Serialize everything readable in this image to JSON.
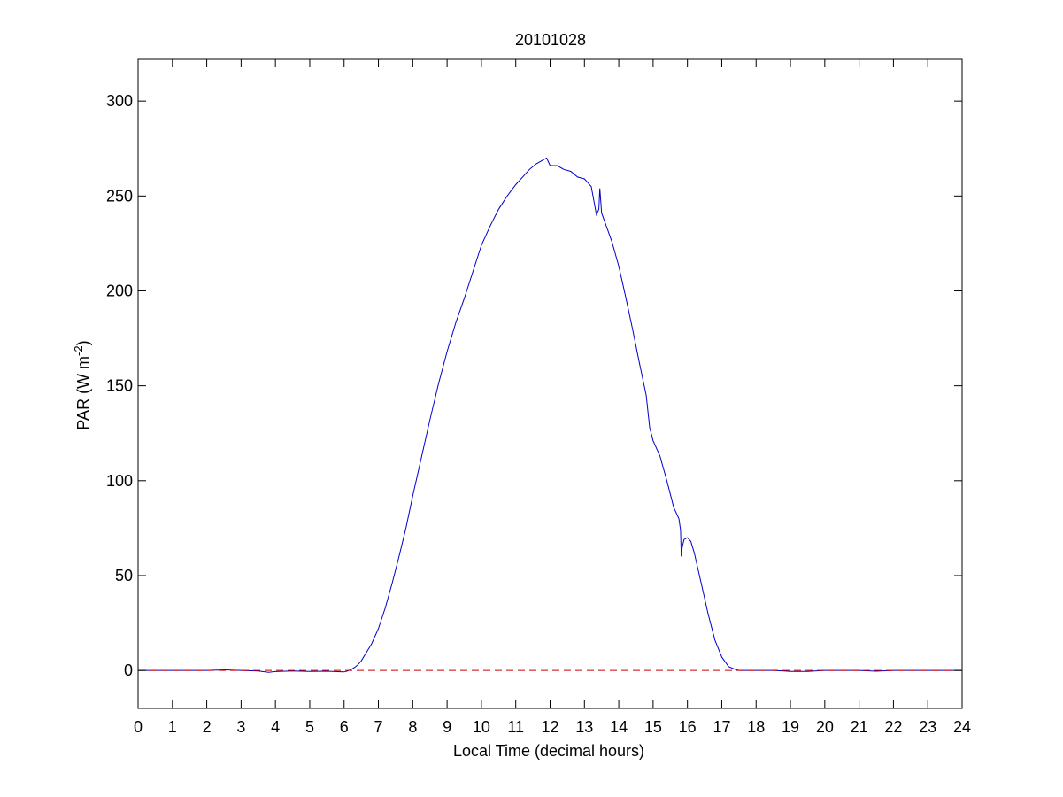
{
  "chart_data": {
    "type": "line",
    "title": "20101028",
    "xlabel": "Local Time (decimal hours)",
    "ylabel": "PAR (W m",
    "ylabel_sup": "-2",
    "ylabel_tail": ")",
    "xlim": [
      0,
      24
    ],
    "ylim": [
      -20,
      322
    ],
    "xticks": [
      0,
      1,
      2,
      3,
      4,
      5,
      6,
      7,
      8,
      9,
      10,
      11,
      12,
      13,
      14,
      15,
      16,
      17,
      18,
      19,
      20,
      21,
      22,
      23,
      24
    ],
    "yticks": [
      0,
      50,
      100,
      150,
      200,
      250,
      300
    ],
    "grid": false,
    "series": [
      {
        "color": "#0000cc",
        "style": "solid",
        "x": [
          0,
          1,
          2,
          2.5,
          3,
          3.5,
          3.8,
          4,
          4.5,
          5,
          5.5,
          6,
          6.1,
          6.2,
          6.3,
          6.4,
          6.5,
          6.6,
          6.8,
          7,
          7.2,
          7.4,
          7.6,
          7.8,
          8,
          8.25,
          8.5,
          8.75,
          9,
          9.25,
          9.5,
          9.75,
          10,
          10.25,
          10.5,
          10.75,
          11,
          11.2,
          11.4,
          11.6,
          11.8,
          11.9,
          12,
          12.2,
          12.4,
          12.6,
          12.8,
          13,
          13.2,
          13.35,
          13.42,
          13.45,
          13.5,
          13.6,
          13.8,
          14,
          14.2,
          14.4,
          14.6,
          14.8,
          14.9,
          15,
          15.2,
          15.4,
          15.6,
          15.75,
          15.8,
          15.82,
          15.85,
          15.9,
          16,
          16.1,
          16.2,
          16.4,
          16.6,
          16.8,
          17,
          17.2,
          17.4,
          17.5,
          18,
          18.5,
          19,
          19.5,
          20,
          20.5,
          21,
          21.5,
          22,
          23,
          24
        ],
        "y": [
          0,
          0,
          0,
          0.3,
          0,
          -0.3,
          -1,
          -0.6,
          -0.3,
          -0.5,
          -0.4,
          -0.8,
          -0.3,
          0.5,
          1.5,
          3,
          5,
          8,
          14,
          22,
          33,
          46,
          60,
          75,
          92,
          112,
          132,
          151,
          168,
          183,
          196,
          210,
          224,
          234,
          243,
          250,
          256,
          260,
          264,
          267,
          269,
          270,
          266,
          266,
          264,
          263,
          260,
          259,
          255,
          240,
          243,
          254,
          241,
          236,
          226,
          213,
          197,
          180,
          162,
          145,
          128,
          121,
          113,
          100,
          86,
          80,
          74,
          60,
          65,
          69,
          70,
          68,
          62,
          46,
          30,
          16,
          7,
          2,
          0.5,
          0,
          0,
          0,
          -0.5,
          -0.5,
          0,
          0,
          0,
          -0.4,
          0,
          0,
          0
        ]
      },
      {
        "color": "#cc0000",
        "style": "dashed",
        "x": [
          0,
          24
        ],
        "y": [
          0,
          0
        ]
      }
    ]
  },
  "colors": {
    "line": "#0000cc",
    "zero_line": "#cc0000",
    "axes": "#000000"
  }
}
